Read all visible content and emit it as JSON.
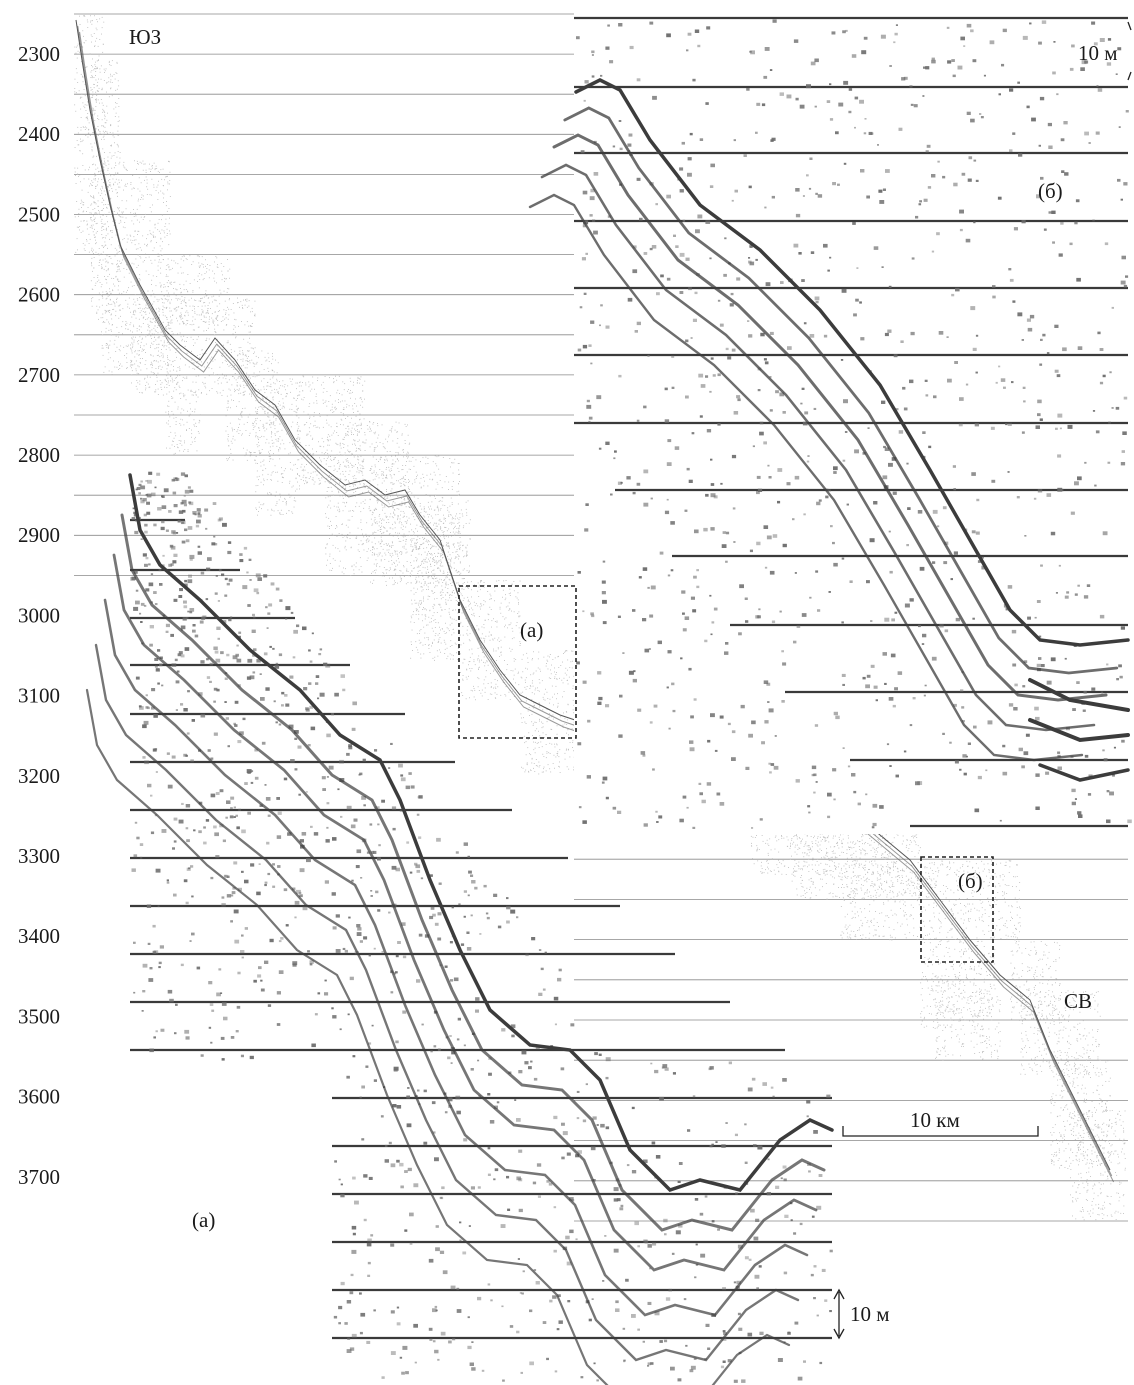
{
  "labels": {
    "sw": "ЮЗ",
    "ne": "СВ",
    "inset_a_box": "(а)",
    "inset_b_box": "(б)",
    "inset_a_panel": "(а)",
    "inset_b_panel": "(б)",
    "scale_vertical_top": "10 м",
    "scale_vertical_bottom": "10 м",
    "scale_horizontal": "10 км"
  },
  "depth_ticks": [
    "2300",
    "2400",
    "2500",
    "2600",
    "2700",
    "2800",
    "2900",
    "3000",
    "3100",
    "3200",
    "3300",
    "3400",
    "3500",
    "3600",
    "3700"
  ],
  "colors": {
    "ink": "#1a1a1a",
    "noise_light": "#bdbdbd",
    "noise_dark": "#6a6a6a",
    "reflector": "#3c3c3c"
  }
}
